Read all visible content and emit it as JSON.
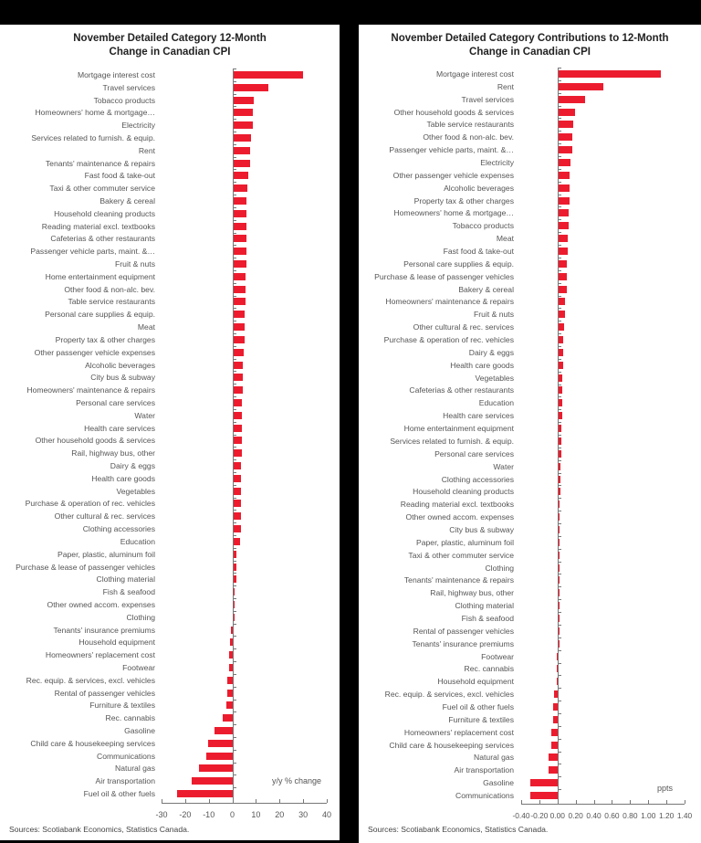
{
  "chart_data": [
    {
      "type": "bar",
      "orientation": "horizontal",
      "title": "November Detailed Category 12-Month Change in Canadian CPI",
      "title_lines": [
        "November Detailed Category 12-Month",
        "Change in Canadian CPI"
      ],
      "xlabel": "y/y % change",
      "xlim": [
        -30,
        40
      ],
      "xticks": [
        "-30",
        "-20",
        "-10",
        "0",
        "10",
        "20",
        "30",
        "40"
      ],
      "source": "Sources: Scotiabank Economics, Statistics Canada.",
      "color": "#ec1c2e",
      "categories": [
        "Mortgage interest cost",
        "Travel services",
        "Tobacco products",
        "Homeowners' home & mortgage…",
        "Electricity",
        "Services related to furnish. & equip.",
        "Rent",
        "Tenants' maintenance & repairs",
        "Fast food & take-out",
        "Taxi & other commuter service",
        "Bakery & cereal",
        "Household cleaning products",
        "Reading material excl. textbooks",
        "Cafeterias & other restaurants",
        "Passenger vehicle parts, maint. &…",
        "Fruit & nuts",
        "Home entertainment equipment",
        "Other food & non-alc. bev.",
        "Table service restaurants",
        "Personal care supplies & equip.",
        "Meat",
        "Property tax & other charges",
        "Other passenger vehicle expenses",
        "Alcoholic beverages",
        "City bus & subway",
        "Homeowners' maintenance & repairs",
        "Personal care services",
        "Water",
        "Health care services",
        "Other household goods & services",
        "Rail, highway bus, other",
        "Dairy & eggs",
        "Health care goods",
        "Vegetables",
        "Purchase & operation of rec. vehicles",
        "Other cultural & rec. services",
        "Clothing accessories",
        "Education",
        "Paper, plastic, aluminum foil",
        "Purchase & lease of passenger vehicles",
        "Clothing material",
        "Fish & seafood",
        "Other owned accom. expenses",
        "Clothing",
        "Tenants' insurance premiums",
        "Household equipment",
        "Homeowners' replacement cost",
        "Footwear",
        "Rec. equip. & services, excl. vehicles",
        "Rental of passenger vehicles",
        "Furniture & textiles",
        "Rec. cannabis",
        "Gasoline",
        "Child care & housekeeping services",
        "Communications",
        "Natural gas",
        "Air transportation",
        "Fuel oil & other fuels"
      ],
      "values": [
        29.7,
        15.0,
        8.6,
        8.2,
        8.1,
        7.6,
        7.2,
        7.1,
        6.2,
        6.0,
        5.7,
        5.6,
        5.5,
        5.4,
        5.4,
        5.4,
        5.3,
        5.1,
        5.1,
        4.9,
        4.9,
        4.8,
        4.5,
        4.2,
        4.0,
        3.9,
        3.7,
        3.6,
        3.6,
        3.5,
        3.5,
        3.4,
        3.3,
        3.3,
        3.3,
        3.2,
        3.1,
        2.8,
        1.4,
        1.4,
        1.3,
        0.6,
        0.2,
        0.1,
        -0.6,
        -0.9,
        -1.4,
        -1.5,
        -2.0,
        -2.3,
        -2.6,
        -3.9,
        -7.6,
        -10.2,
        -11.1,
        -14.1,
        -17.3,
        -23.6
      ]
    },
    {
      "type": "bar",
      "orientation": "horizontal",
      "title": "November Detailed Category Contributions to 12-Month Change in Canadian CPI",
      "title_lines": [
        "November Detailed Category Contributions to 12-Month",
        "Change in Canadian CPI"
      ],
      "xlabel": "ppts",
      "xlim": [
        -0.4,
        1.4
      ],
      "xticks": [
        "-0.40",
        "-0.20",
        "0.00",
        "0.20",
        "0.40",
        "0.60",
        "0.80",
        "1.00",
        "1.20",
        "1.40"
      ],
      "source": "Sources: Scotiabank Economics, Statistics Canada.",
      "color": "#ec1c2e",
      "categories": [
        "Mortgage interest cost",
        "Rent",
        "Travel services",
        "Other household goods & services",
        "Table service restaurants",
        "Other food & non-alc. bev.",
        "Passenger vehicle parts, maint. &…",
        "Electricity",
        "Other passenger vehicle expenses",
        "Alcoholic beverages",
        "Property tax & other charges",
        "Homeowners' home & mortgage…",
        "Tobacco products",
        "Meat",
        "Fast food & take-out",
        "Personal care supplies & equip.",
        "Purchase & lease of passenger vehicles",
        "Bakery & cereal",
        "Homeowners' maintenance & repairs",
        "Fruit & nuts",
        "Other cultural & rec. services",
        "Purchase & operation of rec. vehicles",
        "Dairy & eggs",
        "Health care goods",
        "Vegetables",
        "Cafeterias & other restaurants",
        "Education",
        "Health care services",
        "Home entertainment equipment",
        "Services related to furnish. & equip.",
        "Personal care services",
        "Water",
        "Clothing accessories",
        "Household cleaning products",
        "Reading material excl. textbooks",
        "Other owned accom. expenses",
        "City bus & subway",
        "Paper, plastic, aluminum foil",
        "Taxi & other commuter service",
        "Clothing",
        "Tenants' maintenance & repairs",
        "Rail, highway bus, other",
        "Clothing material",
        "Fish & seafood",
        "Rental of passenger vehicles",
        "Tenants' insurance premiums",
        "Footwear",
        "Rec. cannabis",
        "Household equipment",
        "Rec. equip. & services, excl. vehicles",
        "Fuel oil & other fuels",
        "Furniture & textiles",
        "Homeowners' replacement cost",
        "Child care & housekeeping services",
        "Natural gas",
        "Air transportation",
        "Gasoline",
        "Communications"
      ],
      "values": [
        1.13,
        0.5,
        0.29,
        0.18,
        0.16,
        0.15,
        0.15,
        0.13,
        0.12,
        0.12,
        0.12,
        0.11,
        0.11,
        0.1,
        0.1,
        0.09,
        0.09,
        0.09,
        0.07,
        0.07,
        0.06,
        0.05,
        0.05,
        0.05,
        0.04,
        0.04,
        0.04,
        0.04,
        0.03,
        0.03,
        0.03,
        0.02,
        0.02,
        0.02,
        0.01,
        0.01,
        0.01,
        0.005,
        0.005,
        0.004,
        0.003,
        0.003,
        0.002,
        0.002,
        0.001,
        0.0,
        -0.005,
        -0.01,
        -0.01,
        -0.04,
        -0.05,
        -0.05,
        -0.07,
        -0.07,
        -0.1,
        -0.1,
        -0.3,
        -0.3
      ]
    }
  ]
}
